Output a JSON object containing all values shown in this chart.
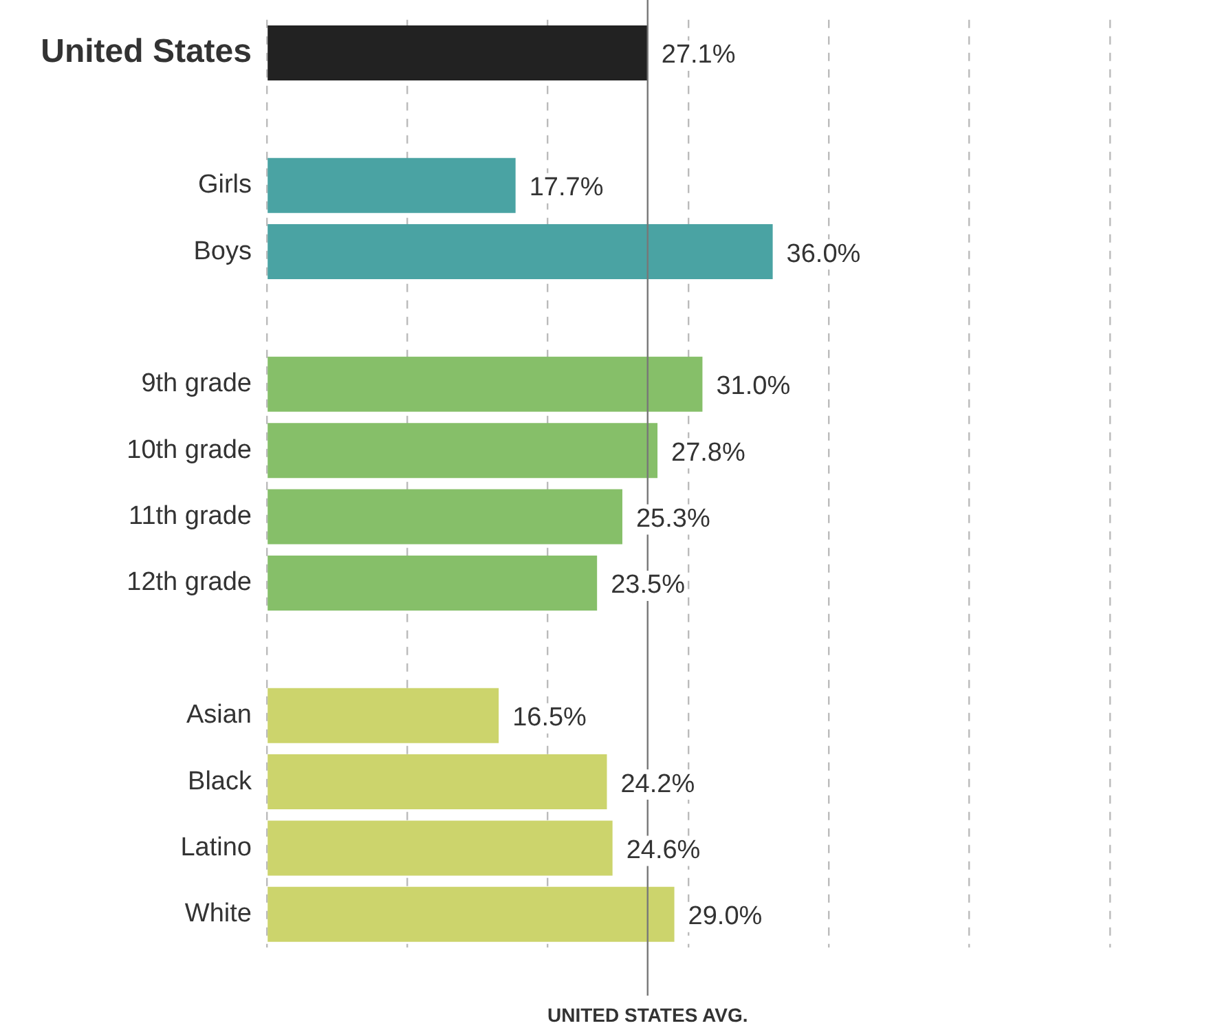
{
  "chart_data": {
    "type": "bar",
    "orientation": "horizontal",
    "categories": [
      "United States",
      null,
      "Girls",
      "Boys",
      null,
      "9th grade",
      "10th grade",
      "11th grade",
      "12th grade",
      null,
      "Asian",
      "Black",
      "Latino",
      "White"
    ],
    "values": [
      27.1,
      null,
      17.7,
      36.0,
      null,
      31.0,
      27.8,
      25.3,
      23.5,
      null,
      16.5,
      24.2,
      24.6,
      29.0
    ],
    "colors": [
      "#222222",
      null,
      "#4aa3a3",
      "#4aa3a3",
      null,
      "#86bf69",
      "#86bf69",
      "#86bf69",
      "#86bf69",
      null,
      "#ccd46c",
      "#ccd46c",
      "#ccd46c",
      "#ccd46c"
    ],
    "value_labels": [
      "27.1%",
      null,
      "17.7%",
      "36.0%",
      null,
      "31.0%",
      "27.8%",
      "25.3%",
      "23.5%",
      null,
      "16.5%",
      "24.2%",
      "24.6%",
      "29.0%"
    ],
    "xlim": [
      0,
      60
    ],
    "xticks": [
      {
        "value": 0,
        "label": null
      },
      {
        "value": 10,
        "label": null
      },
      {
        "value": 20,
        "label": null
      },
      {
        "value": 30,
        "label": null
      },
      {
        "value": 40,
        "label": null
      },
      {
        "value": 50,
        "label": null
      },
      {
        "value": 60,
        "label": null
      }
    ],
    "ref_lines": [
      {
        "axis": "x",
        "value": 27.1,
        "label": "UNITED STATES AVG.",
        "color": "#777777"
      }
    ],
    "grid": "x",
    "tick_labels": "y",
    "legend": false
  }
}
